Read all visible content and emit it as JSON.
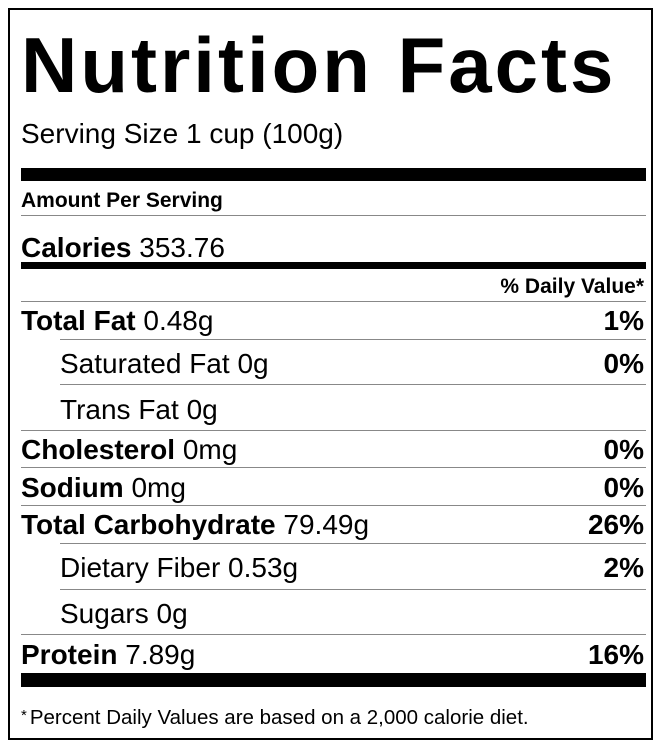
{
  "title": "Nutrition Facts",
  "serving_size": "Serving Size 1 cup (100g)",
  "amount_per_serving": "Amount Per Serving",
  "calories": {
    "label": "Calories",
    "value": "353.76"
  },
  "daily_value_header": "% Daily Value*",
  "nutrients": [
    {
      "label": "Total Fat",
      "amount": "0.48g",
      "dv": "1%"
    },
    {
      "label": "Saturated Fat",
      "amount": "0g",
      "dv": "0%"
    },
    {
      "label": "Trans Fat",
      "amount": "0g",
      "dv": ""
    },
    {
      "label": "Cholesterol",
      "amount": "0mg",
      "dv": "0%"
    },
    {
      "label": "Sodium",
      "amount": "0mg",
      "dv": "0%"
    },
    {
      "label": "Total Carbohydrate",
      "amount": "79.49g",
      "dv": "26%"
    },
    {
      "label": "Dietary Fiber",
      "amount": "0.53g",
      "dv": "2%"
    },
    {
      "label": "Sugars",
      "amount": "0g",
      "dv": ""
    },
    {
      "label": "Protein",
      "amount": "7.89g",
      "dv": "16%"
    }
  ],
  "footnote": {
    "star": "*",
    "text": "Percent Daily Values are based on a 2,000 calorie diet."
  }
}
